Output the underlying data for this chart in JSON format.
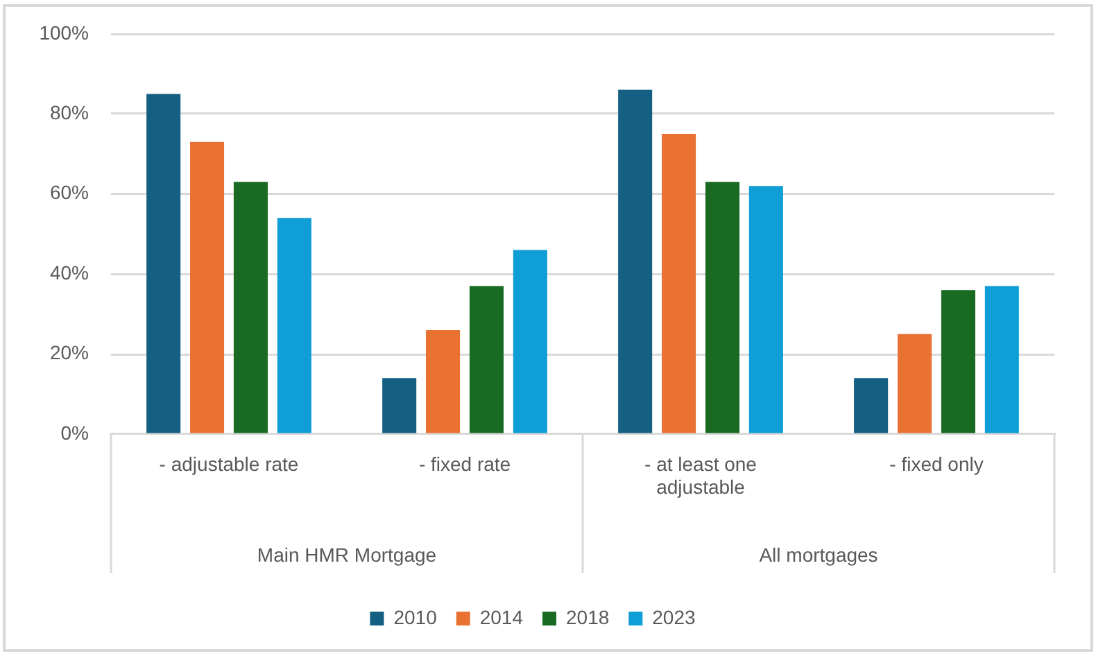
{
  "chart_data": {
    "type": "bar",
    "categories": [
      "- adjustable rate",
      "- fixed rate",
      "- at least one adjustable",
      "- fixed only"
    ],
    "series": [
      {
        "name": "2010",
        "color": "#156082",
        "values": [
          85,
          14,
          86,
          14
        ]
      },
      {
        "name": "2014",
        "color": "#e97132",
        "values": [
          73,
          26,
          75,
          25
        ]
      },
      {
        "name": "2018",
        "color": "#196b24",
        "values": [
          63,
          37,
          63,
          36
        ]
      },
      {
        "name": "2023",
        "color": "#0f9ed5",
        "values": [
          54,
          46,
          62,
          37
        ]
      }
    ],
    "ylim": [
      0,
      100
    ],
    "yticks": [
      {
        "value": 0,
        "label": "0%"
      },
      {
        "value": 20,
        "label": "20%"
      },
      {
        "value": 40,
        "label": "40%"
      },
      {
        "value": 60,
        "label": "60%"
      },
      {
        "value": 80,
        "label": "80%"
      },
      {
        "value": 100,
        "label": "100%"
      }
    ],
    "grid": "y",
    "legend": "bottom",
    "annotations": [
      "Main HMR Mortgage",
      "All mortgages"
    ]
  }
}
